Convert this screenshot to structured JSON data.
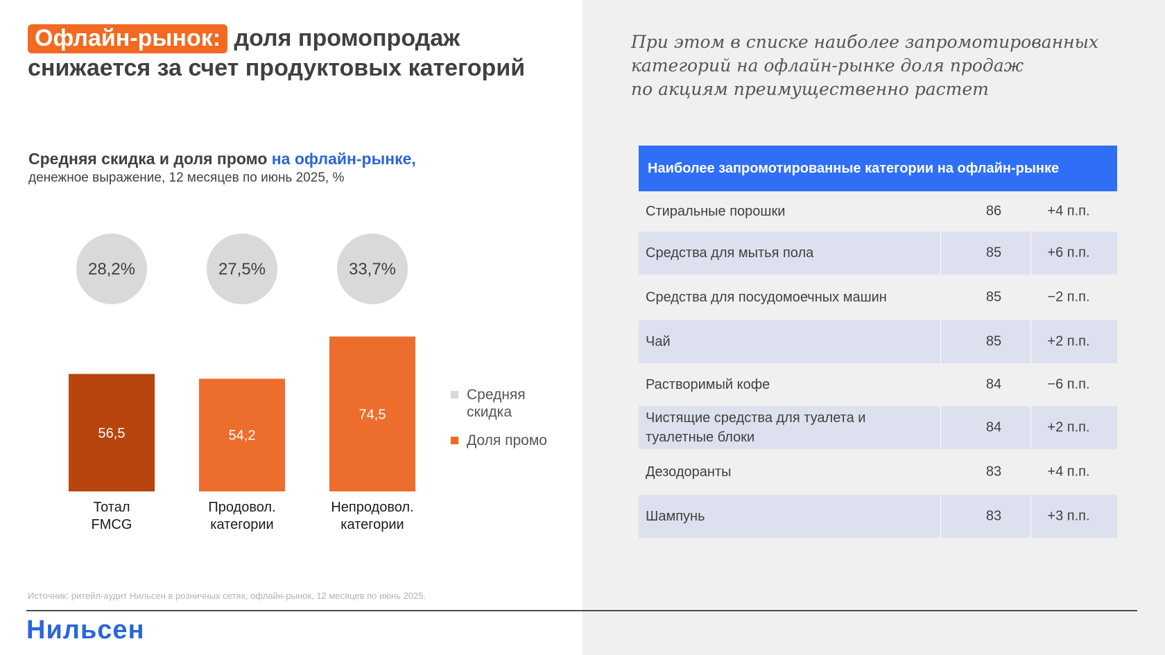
{
  "title": {
    "tag": "Офлайн-рынок:",
    "rest": " доля промопродаж снижается за счет продуктовых категорий"
  },
  "subtitle": {
    "lines": [
      "При этом в списке наиболее запромотированных",
      "категорий на офлайн-рынке доля продаж",
      "по акциям преимущественно растет"
    ]
  },
  "chart_title": {
    "main": "Средняя скидка и доля промо ",
    "highlight": "на офлайн-рынке,",
    "sub": "денежное выражение, 12 месяцев по июнь 2025, %"
  },
  "chart_data": {
    "type": "bar",
    "categories": [
      [
        "Тотал",
        "FMCG"
      ],
      [
        "Продовол.",
        "категории"
      ],
      [
        "Непродовол.",
        "категории"
      ]
    ],
    "series": [
      {
        "name": "Доля промо",
        "values": [
          56.5,
          54.2,
          74.5
        ],
        "labels": [
          "56,5",
          "54,2",
          "74,5"
        ],
        "colors": [
          "#b8450e",
          "#ed6d2d",
          "#ed6d2d"
        ]
      },
      {
        "name": "Средняя скидка",
        "values": [
          28.2,
          27.5,
          33.7
        ],
        "labels": [
          "28,2%",
          "27,5%",
          "33,7%"
        ],
        "color": "#d9d9d9"
      }
    ],
    "legend": {
      "position": "right",
      "items": [
        {
          "label_lines": [
            "Средняя",
            "скидка"
          ],
          "color": "#d9d9d9"
        },
        {
          "label_lines": [
            "Доля промо"
          ],
          "color": "#f26a21"
        }
      ]
    },
    "ylim": [
      0,
      80
    ],
    "grid": false
  },
  "table": {
    "header": "Наиболее запромотированные категории на офлайн-рынке",
    "rows": [
      {
        "name": "Стиральные порошки",
        "value": "86",
        "diff": "+4 п.п."
      },
      {
        "name": "Средства для мытья пола",
        "value": "85",
        "diff": "+6 п.п."
      },
      {
        "name": "Средства для посудомоечных машин",
        "value": "85",
        "diff": "−2 п.п."
      },
      {
        "name": "Чай",
        "value": "85",
        "diff": "+2 п.п."
      },
      {
        "name": "Растворимый кофе",
        "value": "84",
        "diff": "−6 п.п."
      },
      {
        "name": "Чистящие средства для туалета и туалетные блоки",
        "value": "84",
        "diff": "+2 п.п."
      },
      {
        "name": "Дезодоранты",
        "value": "83",
        "diff": "+4 п.п."
      },
      {
        "name": "Шампунь",
        "value": "83",
        "diff": "+3 п.п."
      }
    ]
  },
  "source": "Источник: ритейл-аудит Нильсен в розничных сетях, офлайн-рынок, 12 месяцев по июнь 2025.",
  "brand": "Нильсен"
}
